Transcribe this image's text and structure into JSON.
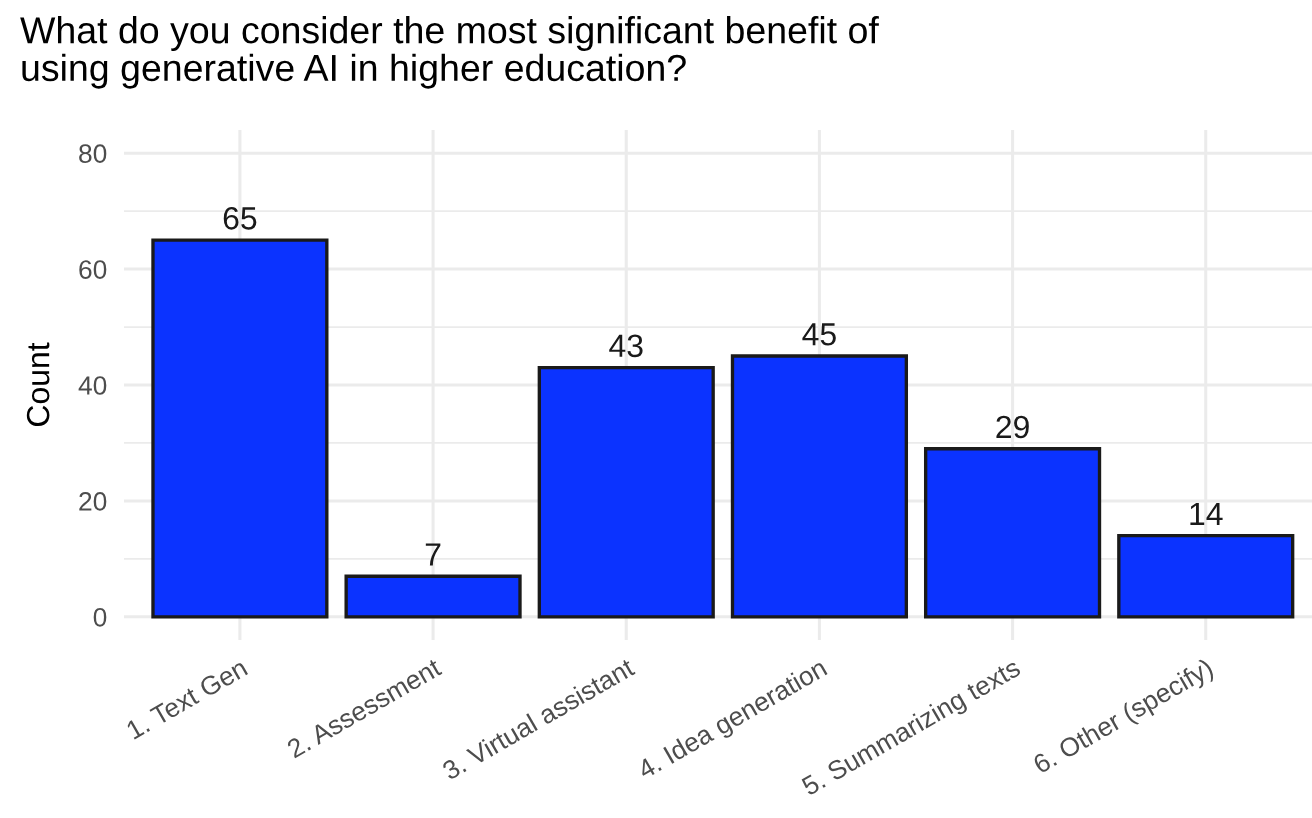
{
  "chart_data": {
    "type": "bar",
    "title": "What do you consider the most significant benefit of\nusing generative AI in higher education?",
    "ylabel": "Count",
    "categories": [
      "1. Text Gen",
      "2. Assessment",
      "3. Virtual assistant",
      "4. Idea generation",
      "5. Summarizing texts",
      "6. Other (specify)"
    ],
    "values": [
      65,
      7,
      43,
      45,
      29,
      14
    ],
    "color": "#0b33ff",
    "ylim": [
      -4,
      84
    ],
    "yticks": [
      0,
      {
        "value": 10,
        "label": null
      },
      20,
      {
        "value": 30,
        "label": null
      },
      40,
      {
        "value": 50,
        "label": null
      },
      60,
      {
        "value": 70,
        "label": null
      },
      80
    ],
    "grid": true,
    "data_labels": true
  }
}
